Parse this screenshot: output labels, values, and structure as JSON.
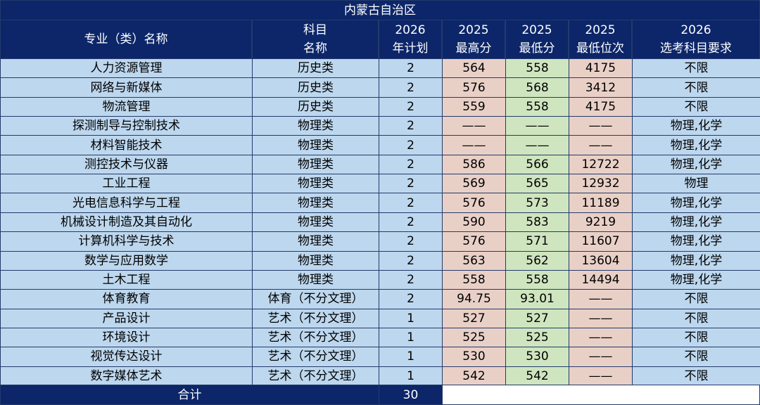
{
  "title": "内蒙古自治区",
  "header": [
    [
      "专业（类）名称"
    ],
    [
      "科目",
      "名称"
    ],
    [
      "2026",
      "年计划"
    ],
    [
      "2025",
      "最高分"
    ],
    [
      "2025",
      "最低分"
    ],
    [
      "2025",
      "最低位次"
    ],
    [
      "2026",
      "选考科目要求"
    ]
  ],
  "rows": [
    [
      "人力资源管理",
      "历史类",
      2,
      564,
      558,
      4175,
      "不限"
    ],
    [
      "网络与新媒体",
      "历史类",
      2,
      576,
      568,
      3412,
      "不限"
    ],
    [
      "物流管理",
      "历史类",
      2,
      559,
      558,
      4175,
      "不限"
    ],
    [
      "探测制导与控制技术",
      "物理类",
      2,
      "——",
      "——",
      "——",
      "物理,化学"
    ],
    [
      "材料智能技术",
      "物理类",
      2,
      "——",
      "——",
      "——",
      "物理,化学"
    ],
    [
      "测控技术与仪器",
      "物理类",
      2,
      586,
      566,
      12722,
      "物理,化学"
    ],
    [
      "工业工程",
      "物理类",
      2,
      569,
      565,
      12932,
      "物理"
    ],
    [
      "光电信息科学与工程",
      "物理类",
      2,
      576,
      573,
      11189,
      "物理,化学"
    ],
    [
      "机械设计制造及其自动化",
      "物理类",
      2,
      590,
      583,
      9219,
      "物理,化学"
    ],
    [
      "计算机科学与技术",
      "物理类",
      2,
      576,
      571,
      11607,
      "物理,化学"
    ],
    [
      "数学与应用数学",
      "物理类",
      2,
      563,
      562,
      13604,
      "物理,化学"
    ],
    [
      "土木工程",
      "物理类",
      2,
      558,
      558,
      14494,
      "物理,化学"
    ],
    [
      "体育教育",
      "体育（不分文理）",
      2,
      94.75,
      93.01,
      "——",
      "不限"
    ],
    [
      "产品设计",
      "艺术（不分文理）",
      1,
      527,
      527,
      "——",
      "不限"
    ],
    [
      "环境设计",
      "艺术（不分文理）",
      1,
      525,
      525,
      "——",
      "不限"
    ],
    [
      "视觉传达设计",
      "艺术（不分文理）",
      1,
      530,
      530,
      "——",
      "不限"
    ],
    [
      "数字媒体艺术",
      "艺术（不分文理）",
      1,
      542,
      542,
      "——",
      "不限"
    ]
  ],
  "total": {
    "label": "合计",
    "value": 30
  }
}
